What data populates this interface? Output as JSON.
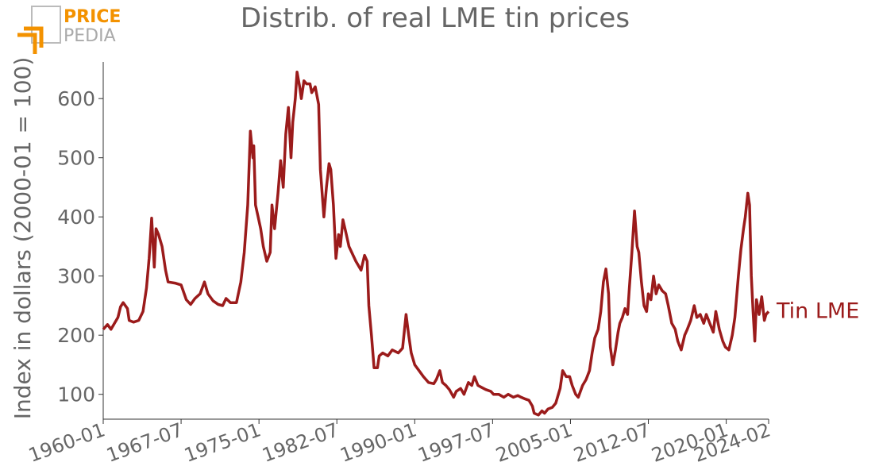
{
  "logo": {
    "top": "PRICE",
    "bottom": "PEDIA"
  },
  "chart_data": {
    "type": "line",
    "title": "Distrib. of real LME tin prices",
    "y_label": "Index in dollars (2000-01 = 100)",
    "x": [
      "1960-01",
      "1960-06",
      "1960-10",
      "1961-06",
      "1961-09",
      "1961-12",
      "1962-05",
      "1962-07",
      "1962-12",
      "1963-06",
      "1963-11",
      "1964-03",
      "1964-06",
      "1964-09",
      "1964-12",
      "1965-02",
      "1965-05",
      "1965-09",
      "1966-01",
      "1966-04",
      "1966-12",
      "1967-07",
      "1968-01",
      "1968-06",
      "1968-11",
      "1969-05",
      "1969-10",
      "1970-02",
      "1970-08",
      "1971-02",
      "1971-07",
      "1971-11",
      "1972-04",
      "1972-11",
      "1973-04",
      "1973-08",
      "1973-12",
      "1974-03",
      "1974-06",
      "1974-07",
      "1974-09",
      "1974-12",
      "1975-03",
      "1975-06",
      "1975-10",
      "1976-02",
      "1976-04",
      "1976-07",
      "1976-11",
      "1977-02",
      "1977-05",
      "1977-08",
      "1977-11",
      "1978-02",
      "1978-04",
      "1978-07",
      "1978-09",
      "1978-12",
      "1979-02",
      "1979-05",
      "1979-08",
      "1979-12",
      "1980-02",
      "1980-06",
      "1980-10",
      "1980-12",
      "1981-02",
      "1981-04",
      "1981-07",
      "1981-10",
      "1981-12",
      "1982-03",
      "1982-06",
      "1982-09",
      "1982-11",
      "1983-02",
      "1983-06",
      "1983-09",
      "1984-05",
      "1984-11",
      "1985-03",
      "1985-06",
      "1985-08",
      "1985-11",
      "1986-02",
      "1986-06",
      "1986-08",
      "1986-12",
      "1987-06",
      "1987-11",
      "1988-06",
      "1988-11",
      "1989-03",
      "1989-06",
      "1989-09",
      "1990-01",
      "1990-06",
      "1990-11",
      "1991-05",
      "1991-11",
      "1992-02",
      "1992-06",
      "1992-09",
      "1993-01",
      "1993-05",
      "1993-10",
      "1994-01",
      "1994-06",
      "1994-10",
      "1995-03",
      "1995-07",
      "1995-10",
      "1996-02",
      "1996-06",
      "1996-11",
      "1997-05",
      "1997-08",
      "1998-02",
      "1998-08",
      "1999-01",
      "1999-07",
      "1999-12",
      "2000-04",
      "2000-09",
      "2001-01",
      "2001-05",
      "2001-07",
      "2001-12",
      "2002-04",
      "2002-07",
      "2002-11",
      "2003-04",
      "2003-08",
      "2004-01",
      "2004-04",
      "2004-08",
      "2004-12",
      "2005-03",
      "2005-07",
      "2005-10",
      "2006-03",
      "2006-07",
      "2006-11",
      "2007-02",
      "2007-05",
      "2007-09",
      "2007-12",
      "2008-03",
      "2008-06",
      "2008-09",
      "2008-11",
      "2009-02",
      "2009-05",
      "2009-08",
      "2009-10",
      "2010-01",
      "2010-04",
      "2010-07",
      "2010-09",
      "2010-12",
      "2011-03",
      "2011-06",
      "2011-08",
      "2011-11",
      "2012-02",
      "2012-05",
      "2012-07",
      "2012-10",
      "2013-01",
      "2013-04",
      "2013-07",
      "2013-11",
      "2014-03",
      "2014-06",
      "2014-10",
      "2015-02",
      "2015-05",
      "2015-09",
      "2016-01",
      "2016-04",
      "2016-08",
      "2016-12",
      "2017-03",
      "2017-07",
      "2017-11",
      "2018-02",
      "2018-06",
      "2018-10",
      "2019-01",
      "2019-05",
      "2019-09",
      "2019-12",
      "2020-04",
      "2020-08",
      "2020-11",
      "2021-03",
      "2021-06",
      "2021-09",
      "2021-11",
      "2022-02",
      "2022-04",
      "2022-06",
      "2022-08",
      "2022-10",
      "2022-12",
      "2023-03",
      "2023-06",
      "2023-09",
      "2023-11",
      "2024-02"
    ],
    "series": [
      {
        "name": "Tin LME",
        "color": "#9b1b1b",
        "values": [
          210,
          218,
          210,
          230,
          248,
          255,
          245,
          225,
          222,
          225,
          240,
          280,
          330,
          398,
          315,
          380,
          370,
          350,
          310,
          290,
          288,
          285,
          260,
          252,
          262,
          270,
          290,
          270,
          258,
          252,
          250,
          262,
          255,
          255,
          290,
          340,
          420,
          545,
          500,
          520,
          420,
          400,
          380,
          350,
          325,
          340,
          420,
          380,
          440,
          495,
          450,
          540,
          585,
          500,
          560,
          600,
          645,
          620,
          600,
          630,
          625,
          625,
          610,
          620,
          590,
          480,
          440,
          400,
          450,
          490,
          480,
          420,
          330,
          370,
          350,
          395,
          370,
          350,
          325,
          310,
          335,
          325,
          250,
          200,
          145,
          145,
          165,
          170,
          165,
          175,
          170,
          178,
          235,
          200,
          170,
          150,
          140,
          130,
          120,
          118,
          125,
          140,
          120,
          115,
          108,
          95,
          105,
          110,
          100,
          120,
          115,
          130,
          115,
          112,
          108,
          105,
          100,
          100,
          95,
          100,
          95,
          98,
          95,
          92,
          90,
          80,
          68,
          65,
          72,
          68,
          75,
          78,
          85,
          110,
          140,
          130,
          130,
          115,
          100,
          95,
          115,
          125,
          140,
          170,
          195,
          210,
          240,
          290,
          312,
          270,
          180,
          150,
          175,
          205,
          220,
          230,
          245,
          235,
          280,
          340,
          410,
          350,
          340,
          290,
          250,
          240,
          270,
          260,
          300,
          270,
          285,
          275,
          270,
          250,
          220,
          210,
          190,
          175,
          200,
          210,
          225,
          250,
          230,
          235,
          220,
          235,
          220,
          205,
          240,
          210,
          190,
          180,
          175,
          200,
          230,
          300,
          345,
          380,
          400,
          440,
          420,
          300,
          240,
          190,
          260,
          235,
          265,
          225,
          235,
          240
        ]
      }
    ],
    "xlim": [
      "1960-01",
      "2024-02"
    ],
    "xticks": [
      "1960-01",
      "1967-07",
      "1975-01",
      "1982-07",
      "1990-01",
      "1997-07",
      "2005-01",
      "2012-07",
      "2020-01",
      "2024-02"
    ],
    "ylim": [
      58,
      662
    ],
    "yticks": [
      100,
      200,
      300,
      400,
      500,
      600
    ]
  }
}
